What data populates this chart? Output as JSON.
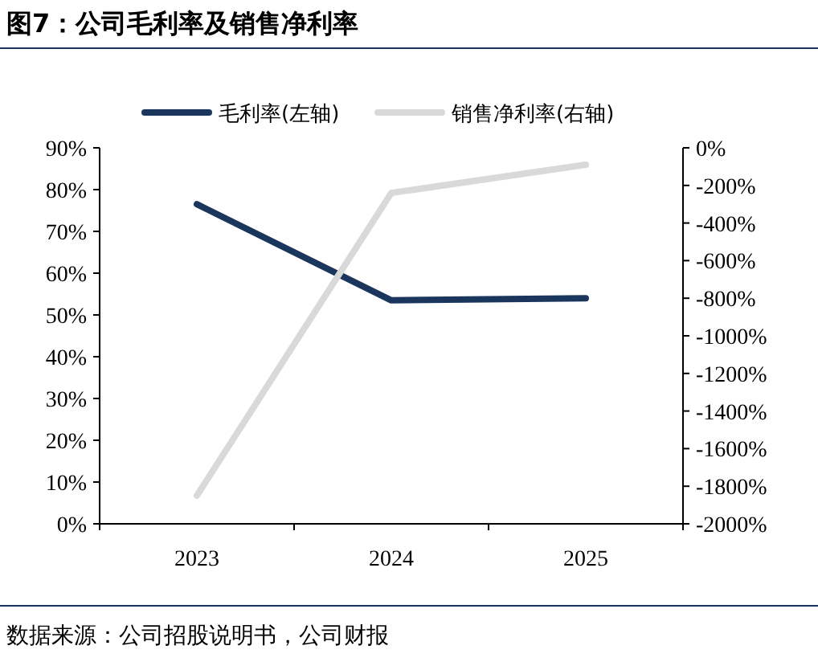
{
  "chart_data": {
    "type": "line",
    "title": "图7：公司毛利率及销售净利率",
    "categories": [
      "2023",
      "2024",
      "2025"
    ],
    "series": [
      {
        "name": "毛利率(左轴)",
        "color": "#1b365d",
        "values": [
          76.5,
          53.5,
          54
        ],
        "axis": "y"
      },
      {
        "name": "销售净利率(右轴)",
        "color": "#d9d9d9",
        "values": [
          -1850,
          -240,
          -90
        ],
        "axis": "y2"
      }
    ],
    "ylim": [
      0,
      90
    ],
    "yticks": [
      {
        "value": 0,
        "label": "0%"
      },
      {
        "value": 10,
        "label": "10%"
      },
      {
        "value": 20,
        "label": "20%"
      },
      {
        "value": 30,
        "label": "30%"
      },
      {
        "value": 40,
        "label": "40%"
      },
      {
        "value": 50,
        "label": "50%"
      },
      {
        "value": 60,
        "label": "60%"
      },
      {
        "value": 70,
        "label": "70%"
      },
      {
        "value": 80,
        "label": "80%"
      },
      {
        "value": 90,
        "label": "90%"
      }
    ],
    "y2lim": [
      -2000,
      0
    ],
    "y2ticks": [
      {
        "value": 0,
        "label": "0%"
      },
      {
        "value": -200,
        "label": "-200%"
      },
      {
        "value": -400,
        "label": "-400%"
      },
      {
        "value": -600,
        "label": "-600%"
      },
      {
        "value": -800,
        "label": "-800%"
      },
      {
        "value": -1000,
        "label": "-1000%"
      },
      {
        "value": -1200,
        "label": "-1200%"
      },
      {
        "value": -1400,
        "label": "-1400%"
      },
      {
        "value": -1600,
        "label": "-1600%"
      },
      {
        "value": -1800,
        "label": "-1800%"
      },
      {
        "value": -2000,
        "label": "-2000%"
      }
    ],
    "legend": "top",
    "grid": false,
    "annotations": [
      "数据来源：公司招股说明书，公司财报"
    ]
  }
}
